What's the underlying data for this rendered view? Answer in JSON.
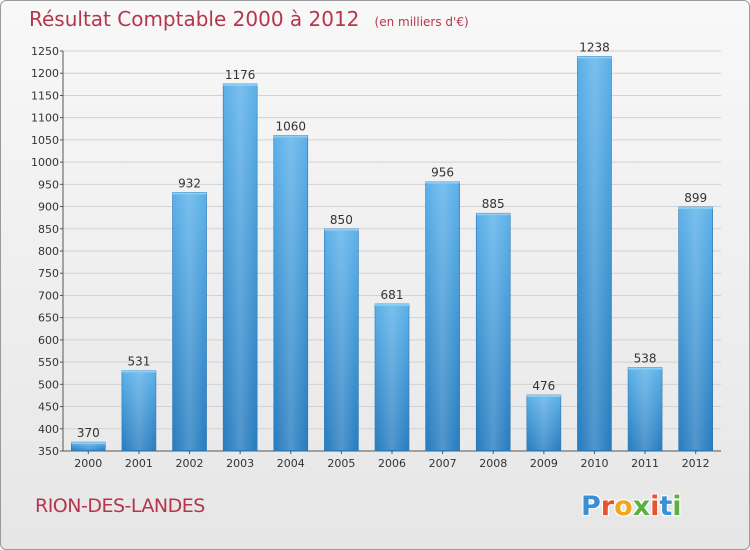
{
  "header": {
    "title": "Résultat Comptable 2000 à 2012",
    "subtitle": "(en milliers d'€)"
  },
  "footer": {
    "commune": "RION-DES-LANDES",
    "logo": "Proxiti"
  },
  "colors": {
    "title": "#b5364c",
    "bar_top": "#5eb2ea",
    "bar_bottom": "#2a7ec0",
    "logo_letters": [
      "#3b8fd4",
      "#e8522c",
      "#f1a71c",
      "#5cb040",
      "#e8522c",
      "#3b8fd4",
      "#5cb040"
    ]
  },
  "chart_data": {
    "type": "bar",
    "categories": [
      "2000",
      "2001",
      "2002",
      "2003",
      "2004",
      "2005",
      "2006",
      "2007",
      "2008",
      "2009",
      "2010",
      "2011",
      "2012"
    ],
    "values": [
      370,
      531,
      932,
      1176,
      1060,
      850,
      681,
      956,
      885,
      476,
      1238,
      538,
      899
    ],
    "title": "Résultat Comptable 2000 à 2012",
    "xlabel": "",
    "ylabel": "",
    "ylim": [
      350,
      1250
    ],
    "ytick_step": 50,
    "yticks": [
      "350",
      "400",
      "450",
      "500",
      "550",
      "600",
      "650",
      "700",
      "750",
      "800",
      "850",
      "900",
      "950",
      "1000",
      "1050",
      "1100",
      "1150",
      "1200",
      "1250"
    ],
    "grid": true,
    "legend": "none"
  }
}
